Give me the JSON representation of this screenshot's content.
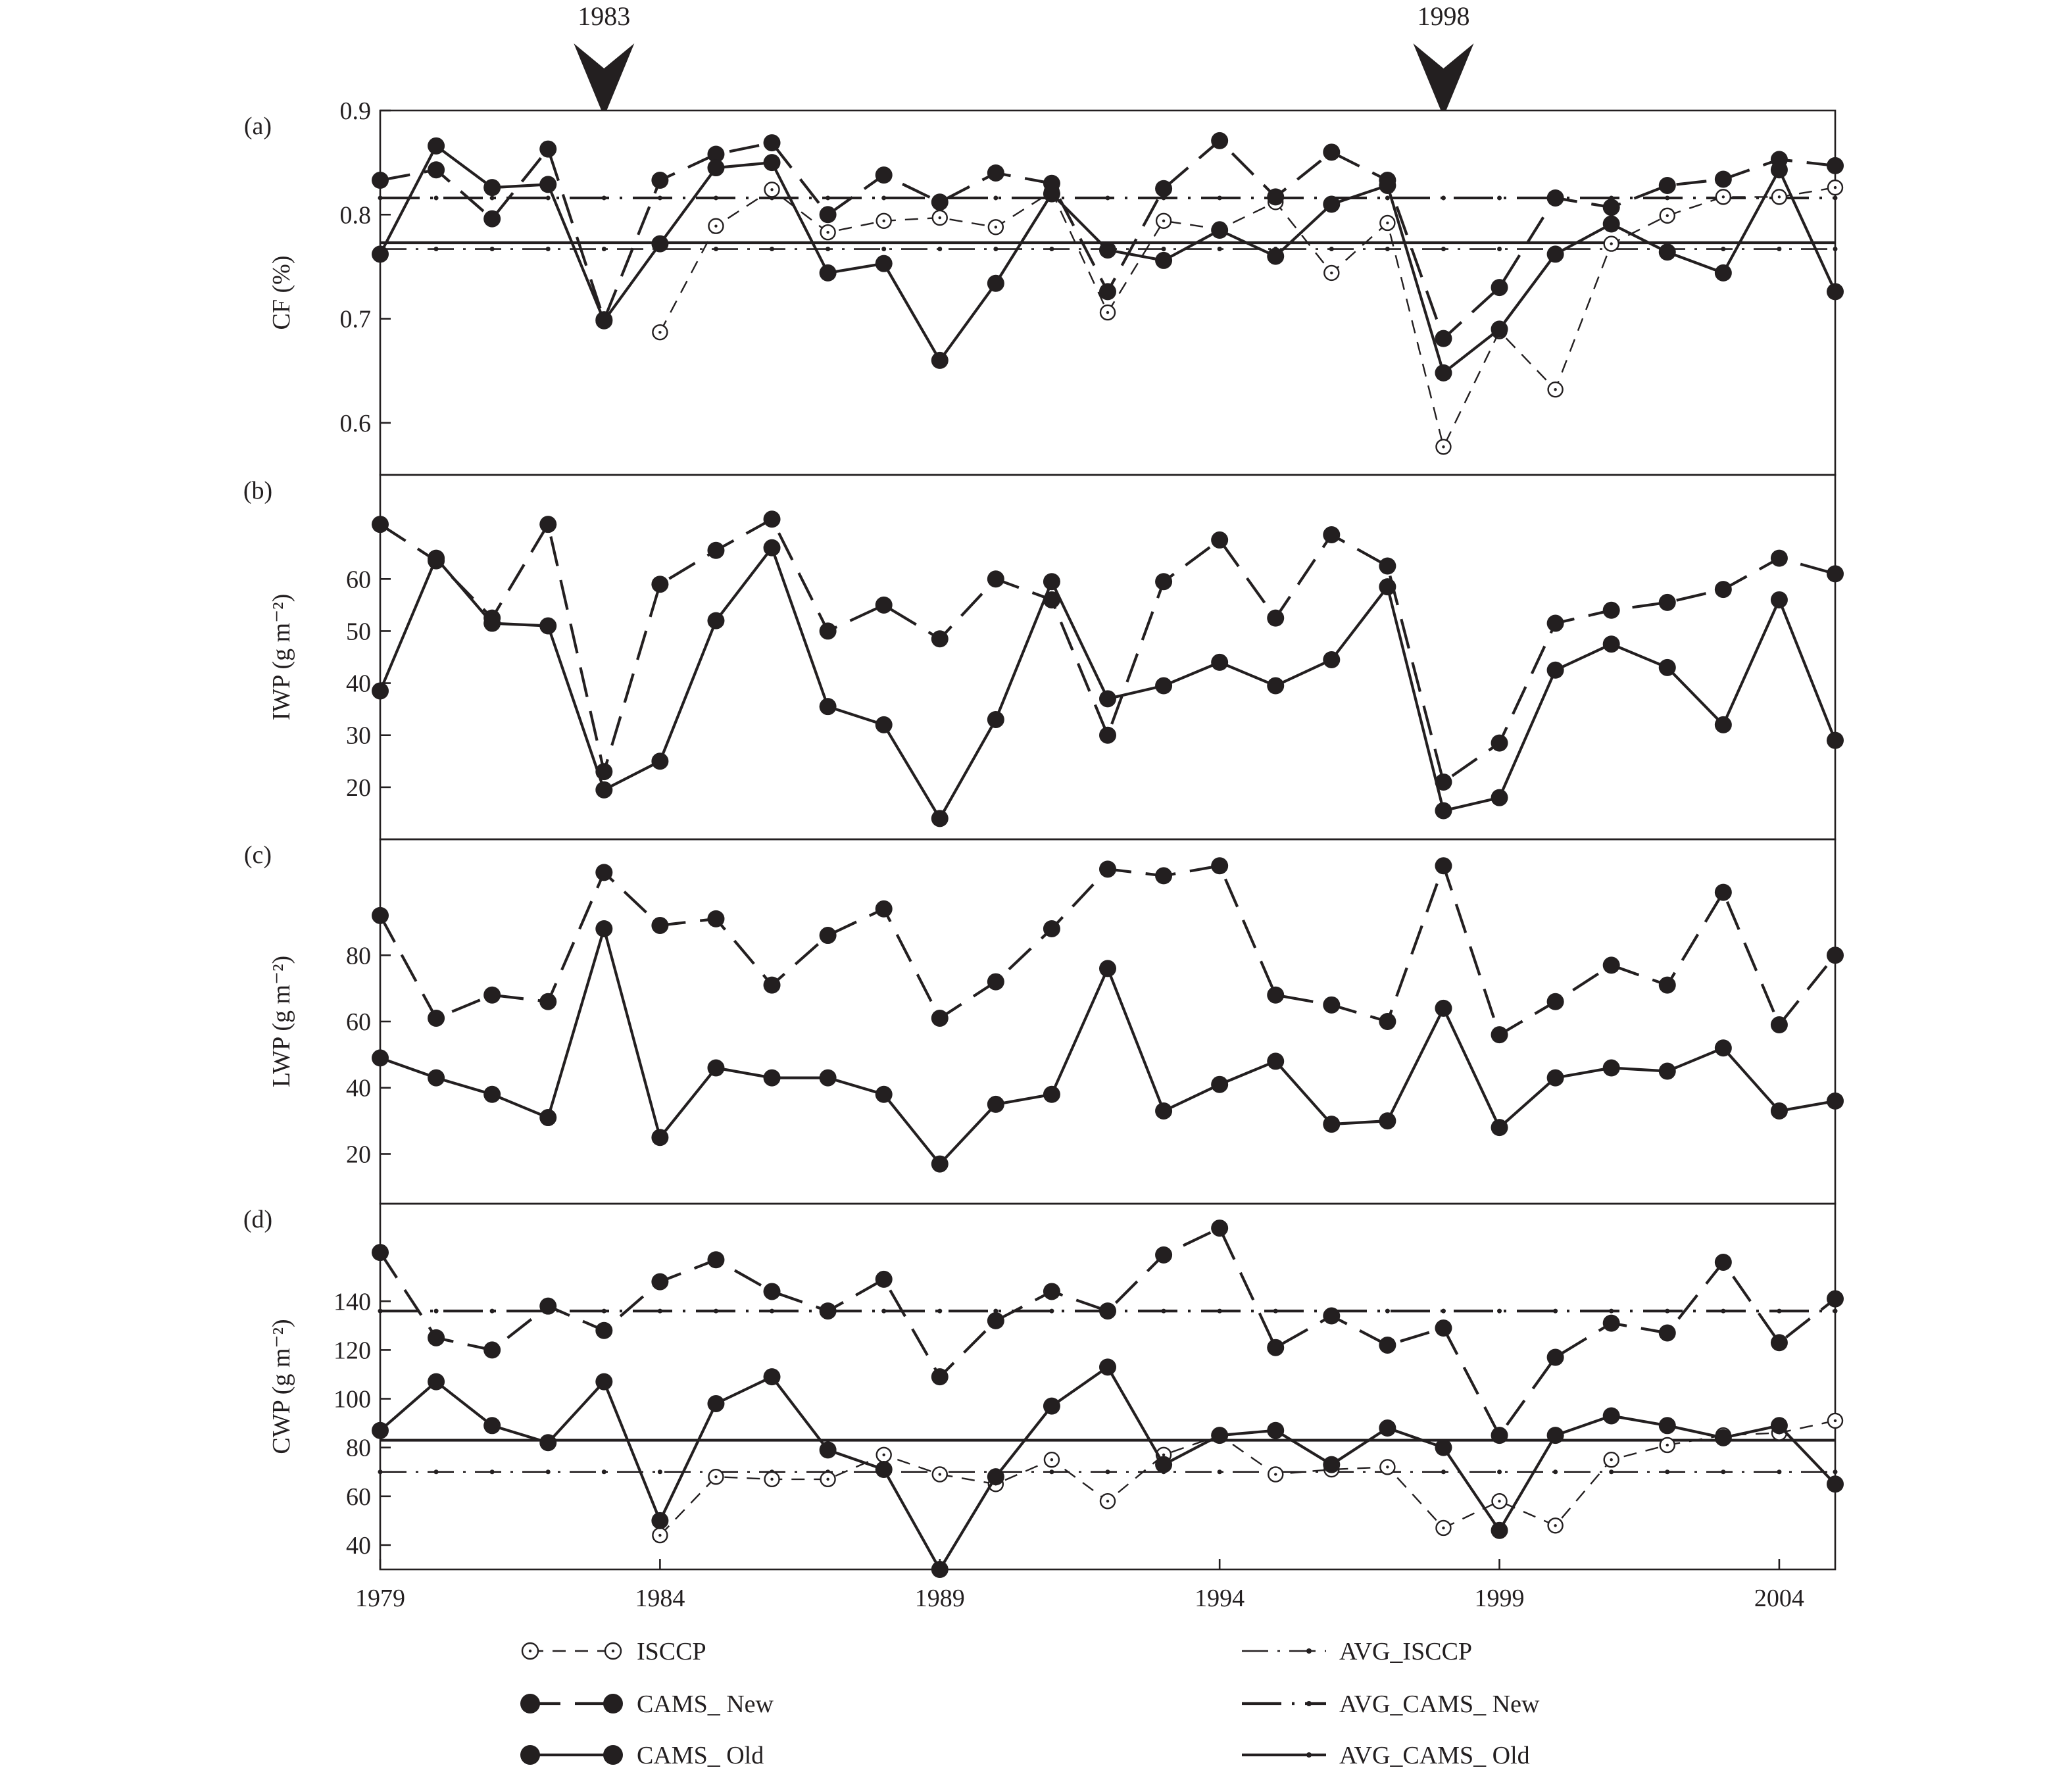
{
  "chart_data": {
    "type": "line",
    "x_ticks": [
      "1979",
      "1984",
      "1989",
      "1994",
      "1999",
      "2004"
    ],
    "xlim": [
      1979,
      2005
    ],
    "events": [
      {
        "year": 1983,
        "label": "1983"
      },
      {
        "year": 1998,
        "label": "1998"
      }
    ],
    "legend": {
      "series": [
        {
          "key": "ISCCP",
          "label": "ISCCP"
        },
        {
          "key": "CAMS_New",
          "label": "CAMS_ New"
        },
        {
          "key": "CAMS_Old",
          "label": "CAMS_ Old"
        }
      ],
      "averages": [
        {
          "key": "AVG_ISCCP",
          "label": "AVG_ISCCP"
        },
        {
          "key": "AVG_CAMS_New",
          "label": "AVG_CAMS_ New"
        },
        {
          "key": "AVG_CAMS_Old",
          "label": "AVG_CAMS_ Old"
        }
      ]
    },
    "panels": [
      {
        "id": "a",
        "letter": "(a)",
        "ylabel": "CF (%)",
        "ylim": [
          0.55,
          0.9
        ],
        "yticks": [
          0.6,
          0.7,
          0.8,
          0.9
        ],
        "ytick_labels": [
          "0.6",
          "0.7",
          "0.8",
          "0.9"
        ],
        "years": [
          1979,
          1980,
          1981,
          1982,
          1983,
          1984,
          1985,
          1986,
          1987,
          1988,
          1989,
          1990,
          1991,
          1992,
          1993,
          1994,
          1995,
          1996,
          1997,
          1998,
          1999,
          2000,
          2001,
          2002,
          2003,
          2004,
          2005
        ],
        "series": {
          "ISCCP": [
            null,
            null,
            null,
            null,
            null,
            0.687,
            0.789,
            0.824,
            0.783,
            0.794,
            0.797,
            0.788,
            0.822,
            0.706,
            0.794,
            0.786,
            0.812,
            0.744,
            0.792,
            0.577,
            0.688,
            0.632,
            0.772,
            0.799,
            0.817,
            0.817,
            0.826
          ],
          "CAMS_New": [
            0.833,
            0.843,
            0.796,
            0.863,
            0.699,
            0.833,
            0.858,
            0.869,
            0.8,
            0.838,
            0.812,
            0.84,
            0.83,
            0.726,
            0.825,
            0.871,
            0.817,
            0.86,
            0.833,
            0.681,
            0.73,
            0.816,
            0.807,
            0.828,
            0.834,
            0.853,
            0.847
          ],
          "CAMS_Old": [
            0.762,
            0.866,
            0.826,
            0.829,
            0.698,
            0.772,
            0.845,
            0.85,
            0.744,
            0.753,
            0.66,
            0.734,
            0.82,
            0.766,
            0.756,
            0.785,
            0.76,
            0.81,
            0.828,
            0.648,
            0.69,
            0.762,
            0.791,
            0.764,
            0.744,
            0.843,
            0.726
          ]
        },
        "averages": {
          "AVG_ISCCP": 0.767,
          "AVG_CAMS_New": 0.816,
          "AVG_CAMS_Old": 0.773
        }
      },
      {
        "id": "b",
        "letter": "(b)",
        "ylabel": "IWP (g m⁻²)",
        "ylim": [
          10,
          80
        ],
        "yticks": [
          20,
          30,
          40,
          50,
          60
        ],
        "ytick_labels": [
          "20",
          "30",
          "40",
          "50",
          "60"
        ],
        "years": [
          1979,
          1980,
          1981,
          1982,
          1983,
          1984,
          1985,
          1986,
          1987,
          1988,
          1989,
          1990,
          1991,
          1992,
          1993,
          1994,
          1995,
          1996,
          1997,
          1998,
          1999,
          2000,
          2001,
          2002,
          2003,
          2004,
          2005
        ],
        "series": {
          "CAMS_New": [
            70.5,
            63.5,
            52.5,
            70.5,
            23.0,
            59.0,
            65.5,
            71.5,
            50.0,
            55.0,
            48.5,
            60.0,
            56.0,
            30.0,
            59.5,
            67.5,
            52.5,
            68.5,
            62.5,
            21.0,
            28.5,
            51.5,
            54.0,
            55.5,
            58.0,
            64.0,
            61.0
          ],
          "CAMS_Old": [
            38.5,
            64.0,
            51.5,
            51.0,
            19.5,
            25.0,
            52.0,
            66.0,
            35.5,
            32.0,
            14.0,
            33.0,
            59.5,
            37.0,
            39.5,
            44.0,
            39.5,
            44.5,
            58.5,
            15.5,
            18.0,
            42.5,
            47.5,
            43.0,
            32.0,
            56.0,
            29.0
          ]
        }
      },
      {
        "id": "c",
        "letter": "(c)",
        "ylabel": "LWP (g m⁻²)",
        "ylim": [
          5,
          115
        ],
        "yticks": [
          20,
          40,
          60,
          80
        ],
        "ytick_labels": [
          "20",
          "40",
          "60",
          "80"
        ],
        "years": [
          1979,
          1980,
          1981,
          1982,
          1983,
          1984,
          1985,
          1986,
          1987,
          1988,
          1989,
          1990,
          1991,
          1992,
          1993,
          1994,
          1995,
          1996,
          1997,
          1998,
          1999,
          2000,
          2001,
          2002,
          2003,
          2004,
          2005
        ],
        "series": {
          "CAMS_New": [
            92,
            61,
            68,
            66,
            105,
            89,
            91,
            71,
            86,
            94,
            61,
            72,
            88,
            106,
            104,
            107,
            68,
            65,
            60,
            107,
            56,
            66,
            77,
            71,
            99,
            59,
            80
          ],
          "CAMS_Old": [
            49,
            43,
            38,
            31,
            88,
            25,
            46,
            43,
            43,
            38,
            17,
            35,
            38,
            76,
            33,
            41,
            48,
            29,
            30,
            64,
            28,
            43,
            46,
            45,
            52,
            33,
            36
          ]
        }
      },
      {
        "id": "d",
        "letter": "(d)",
        "ylabel": "CWP (g m⁻²)",
        "ylim": [
          30,
          180
        ],
        "yticks": [
          40,
          60,
          80,
          100,
          120,
          140
        ],
        "ytick_labels": [
          "40",
          "60",
          "80",
          "100",
          "120",
          "140"
        ],
        "years": [
          1979,
          1980,
          1981,
          1982,
          1983,
          1984,
          1985,
          1986,
          1987,
          1988,
          1989,
          1990,
          1991,
          1992,
          1993,
          1994,
          1995,
          1996,
          1997,
          1998,
          1999,
          2000,
          2001,
          2002,
          2003,
          2004,
          2005
        ],
        "series": {
          "ISCCP": [
            null,
            null,
            null,
            null,
            null,
            44,
            68,
            67,
            67,
            77,
            69,
            65,
            75,
            58,
            77,
            85,
            69,
            71,
            72,
            47,
            58,
            48,
            75,
            81,
            85,
            86,
            91
          ],
          "CAMS_New": [
            160,
            125,
            120,
            138,
            128,
            148,
            157,
            144,
            136,
            149,
            109,
            132,
            144,
            136,
            159,
            170,
            121,
            134,
            122,
            129,
            85,
            117,
            131,
            127,
            156,
            123,
            141
          ],
          "CAMS_Old": [
            87,
            107,
            89,
            82,
            107,
            50,
            98,
            109,
            79,
            71,
            30,
            68,
            97,
            113,
            73,
            85,
            87,
            73,
            88,
            80,
            46,
            85,
            93,
            89,
            84,
            89,
            65
          ]
        },
        "averages": {
          "AVG_ISCCP": 70,
          "AVG_CAMS_New": 136,
          "AVG_CAMS_Old": 83
        }
      }
    ]
  }
}
